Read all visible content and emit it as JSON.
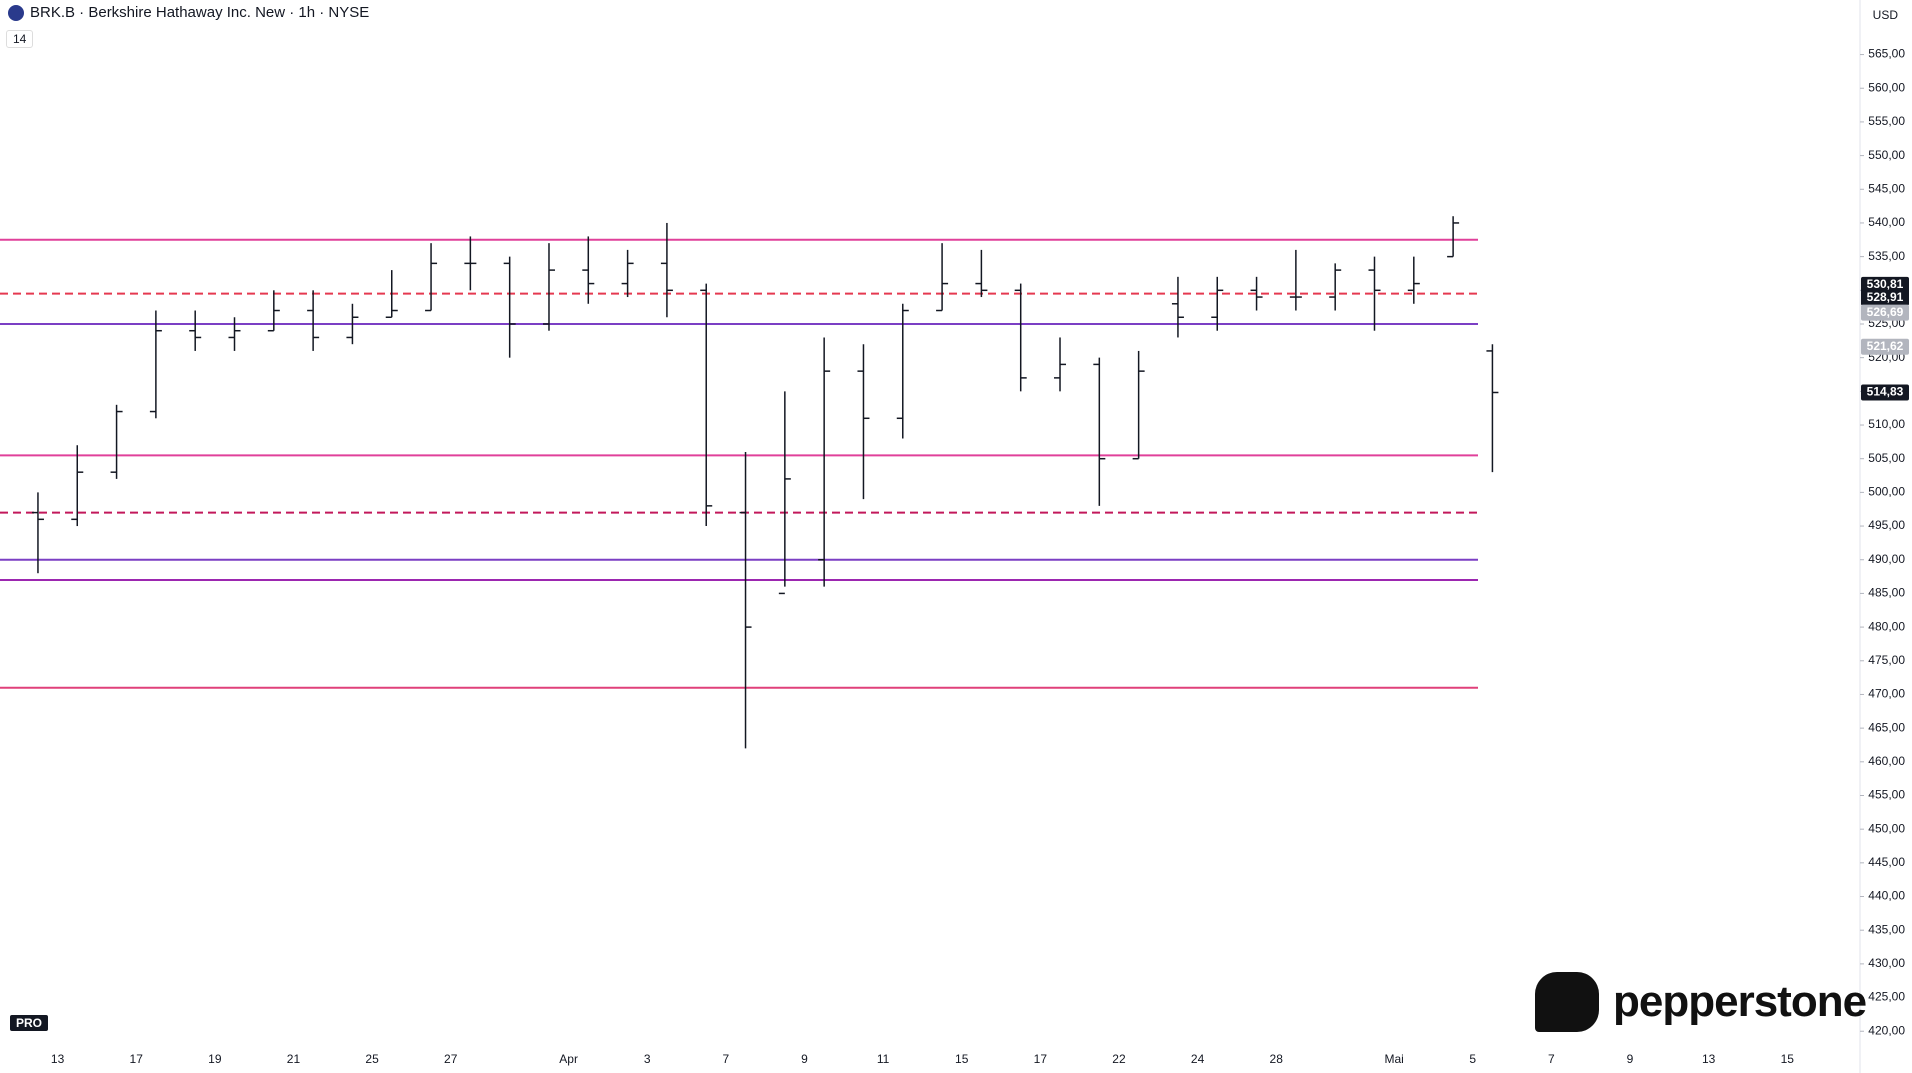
{
  "header": {
    "title": "BRK.B · Berkshire Hathaway Inc. New · 1h · NYSE",
    "indicator": "14",
    "currency": "USD",
    "watermark": "pepperstone",
    "badge": "PRO"
  },
  "chart_data": {
    "type": "ohlc",
    "categories": [
      null,
      "13",
      null,
      "17",
      null,
      "19",
      null,
      "21",
      null,
      "25",
      null,
      "27",
      null,
      null,
      "Apr",
      null,
      "3",
      null,
      "7",
      null,
      "9",
      null,
      "11",
      null,
      "15",
      null,
      "17",
      null,
      "22",
      null,
      "24",
      null,
      "28",
      null,
      null,
      "Mai",
      null,
      "5",
      null,
      "7",
      null,
      "9",
      null,
      "13",
      null,
      "15",
      null
    ],
    "open": [
      497,
      496,
      503,
      512,
      524,
      523,
      524,
      527,
      523,
      526,
      527,
      534,
      534,
      525,
      533,
      531,
      534,
      530,
      497,
      485,
      490,
      518,
      511,
      527,
      531,
      530,
      517,
      519,
      505,
      528,
      526,
      530,
      529,
      529,
      533,
      530,
      535,
      521,
      null,
      null,
      null,
      null,
      null,
      null,
      null,
      null,
      null
    ],
    "high": [
      500,
      507,
      513,
      527,
      527,
      526,
      530,
      530,
      528,
      533,
      537,
      538,
      535,
      537,
      538,
      536,
      540,
      531,
      506,
      515,
      523,
      522,
      528,
      537,
      536,
      531,
      523,
      520,
      521,
      532,
      532,
      532,
      536,
      534,
      535,
      535,
      541,
      522,
      null,
      null,
      null,
      null,
      null,
      null,
      null,
      null,
      null
    ],
    "low": [
      488,
      495,
      502,
      511,
      521,
      521,
      524,
      521,
      522,
      526,
      527,
      530,
      520,
      524,
      528,
      529,
      526,
      495,
      462,
      486,
      486,
      499,
      508,
      527,
      529,
      515,
      515,
      498,
      505,
      523,
      524,
      527,
      527,
      527,
      524,
      528,
      535,
      503,
      null,
      null,
      null,
      null,
      null,
      null,
      null,
      null,
      null
    ],
    "close": [
      496,
      503,
      512,
      524,
      523,
      524,
      527,
      523,
      526,
      527,
      534,
      534,
      525,
      533,
      531,
      534,
      530,
      498,
      480,
      502,
      518,
      511,
      527,
      531,
      530,
      517,
      519,
      505,
      518,
      526,
      530,
      529,
      529,
      533,
      530,
      531,
      540,
      514.83,
      null,
      null,
      null,
      null,
      null,
      null,
      null,
      null,
      null
    ],
    "color": "#131722",
    "levels": [
      {
        "value": 537.5,
        "color": "#e0409a",
        "style": "solid"
      },
      {
        "value": 529.5,
        "color": "#e53950",
        "style": "dashed"
      },
      {
        "value": 525,
        "color": "#7b3fc4",
        "style": "solid"
      },
      {
        "value": 505.5,
        "color": "#e0409a",
        "style": "solid"
      },
      {
        "value": 497,
        "color": "#c2185b",
        "style": "dashed"
      },
      {
        "value": 490,
        "color": "#7b3fc4",
        "style": "solid"
      },
      {
        "value": 487,
        "color": "#9c27b0",
        "style": "solid"
      },
      {
        "value": 471,
        "color": "#e0407a",
        "style": "solid"
      }
    ],
    "price_labels": [
      {
        "value": 530.81,
        "label": "530,81",
        "color": "#131722"
      },
      {
        "value": 528.91,
        "label": "528,91",
        "color": "#131722"
      },
      {
        "value": 526.69,
        "label": "526,69",
        "color": "#b2b5be"
      },
      {
        "value": 521.62,
        "label": "521,62",
        "color": "#b2b5be"
      },
      {
        "value": 514.83,
        "label": "514,83",
        "color": "#131722"
      }
    ],
    "ylim": [
      413.8,
      573.1
    ],
    "yticks": [
      {
        "value": 420,
        "label": "420,00"
      },
      {
        "value": 425,
        "label": "425,00"
      },
      {
        "value": 430,
        "label": "430,00"
      },
      {
        "value": 435,
        "label": "435,00"
      },
      {
        "value": 440,
        "label": "440,00"
      },
      {
        "value": 445,
        "label": "445,00"
      },
      {
        "value": 450,
        "label": "450,00"
      },
      {
        "value": 455,
        "label": "455,00"
      },
      {
        "value": 460,
        "label": "460,00"
      },
      {
        "value": 465,
        "label": "465,00"
      },
      {
        "value": 470,
        "label": "470,00"
      },
      {
        "value": 475,
        "label": "475,00"
      },
      {
        "value": 480,
        "label": "480,00"
      },
      {
        "value": 485,
        "label": "485,00"
      },
      {
        "value": 490,
        "label": "490,00"
      },
      {
        "value": 495,
        "label": "495,00"
      },
      {
        "value": 500,
        "label": "500,00"
      },
      {
        "value": 505,
        "label": "505,00"
      },
      {
        "value": 510,
        "label": "510,00"
      },
      {
        "value": 515,
        "label": "515,00"
      },
      {
        "value": 520,
        "label": "520,00"
      },
      {
        "value": 525,
        "label": "525,00"
      },
      {
        "value": 530,
        "label": "530,00"
      },
      {
        "value": 535,
        "label": "535,00"
      },
      {
        "value": 540,
        "label": "540,00"
      },
      {
        "value": 545,
        "label": "545,00"
      },
      {
        "value": 550,
        "label": "550,00"
      },
      {
        "value": 555,
        "label": "555,00"
      },
      {
        "value": 560,
        "label": "560,00"
      },
      {
        "value": 565,
        "label": "565,00"
      }
    ]
  }
}
